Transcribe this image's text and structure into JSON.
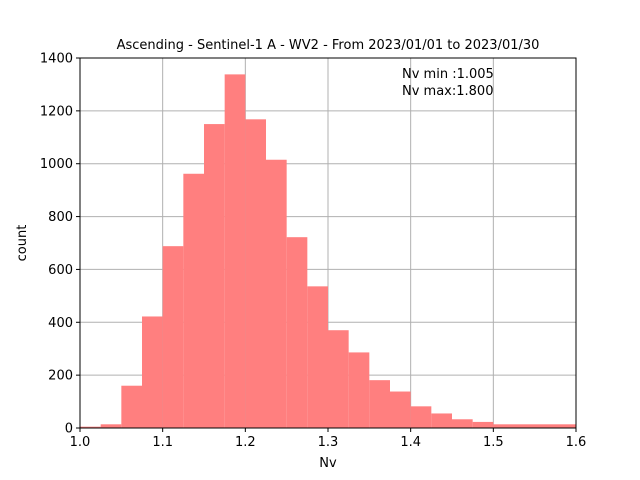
{
  "chart_data": {
    "type": "bar",
    "title": "Ascending - Sentinel-1 A - WV2 - From 2023/01/01 to 2023/01/30",
    "xlabel": "Nv",
    "ylabel": "count",
    "xlim": [
      1.0,
      1.6
    ],
    "ylim": [
      0,
      1400
    ],
    "xticks": [
      "1.0",
      "1.1",
      "1.2",
      "1.3",
      "1.4",
      "1.5",
      "1.6"
    ],
    "xtick_values": [
      1.0,
      1.1,
      1.2,
      1.3,
      1.4,
      1.5,
      1.6
    ],
    "yticks": [
      "0",
      "200",
      "400",
      "600",
      "800",
      "1000",
      "1200",
      "1400"
    ],
    "ytick_values": [
      0,
      200,
      400,
      600,
      800,
      1000,
      1200,
      1400
    ],
    "grid": true,
    "bar_color": "#ff7f7f",
    "bins": [
      {
        "x0": 1.0,
        "x1": 1.025,
        "count": 5
      },
      {
        "x0": 1.025,
        "x1": 1.05,
        "count": 14
      },
      {
        "x0": 1.05,
        "x1": 1.075,
        "count": 160
      },
      {
        "x0": 1.075,
        "x1": 1.1,
        "count": 422
      },
      {
        "x0": 1.1,
        "x1": 1.125,
        "count": 688
      },
      {
        "x0": 1.125,
        "x1": 1.15,
        "count": 962
      },
      {
        "x0": 1.15,
        "x1": 1.175,
        "count": 1150
      },
      {
        "x0": 1.175,
        "x1": 1.2,
        "count": 1338
      },
      {
        "x0": 1.2,
        "x1": 1.225,
        "count": 1168
      },
      {
        "x0": 1.225,
        "x1": 1.25,
        "count": 1015
      },
      {
        "x0": 1.25,
        "x1": 1.275,
        "count": 722
      },
      {
        "x0": 1.275,
        "x1": 1.3,
        "count": 536
      },
      {
        "x0": 1.3,
        "x1": 1.325,
        "count": 370
      },
      {
        "x0": 1.325,
        "x1": 1.35,
        "count": 286
      },
      {
        "x0": 1.35,
        "x1": 1.375,
        "count": 181
      },
      {
        "x0": 1.375,
        "x1": 1.4,
        "count": 138
      },
      {
        "x0": 1.4,
        "x1": 1.425,
        "count": 82
      },
      {
        "x0": 1.425,
        "x1": 1.45,
        "count": 55
      },
      {
        "x0": 1.45,
        "x1": 1.475,
        "count": 33
      },
      {
        "x0": 1.475,
        "x1": 1.5,
        "count": 23
      },
      {
        "x0": 1.5,
        "x1": 1.6,
        "count": 14
      }
    ],
    "annotations": [
      "Nv min :1.005",
      "Nv max:1.800"
    ]
  }
}
